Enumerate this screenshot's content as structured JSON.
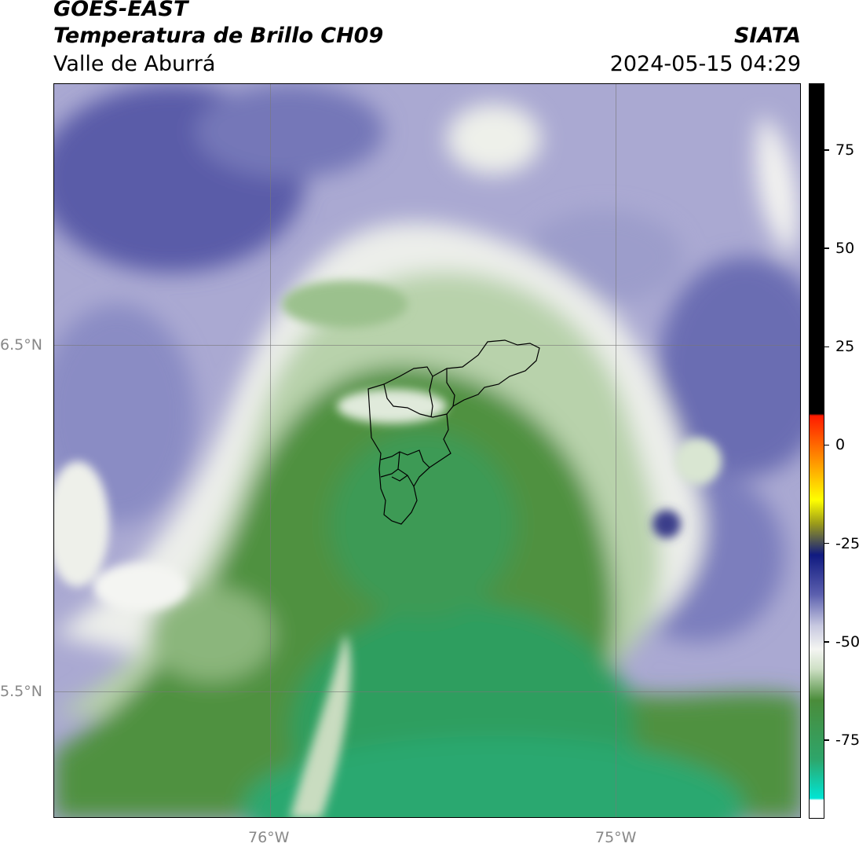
{
  "header": {
    "satellite": "GOES-EAST",
    "product": "Temperatura de Brillo CH09",
    "region": "Valle de Aburrá",
    "org": "SIATA",
    "datetime": "2024-05-15 04:29"
  },
  "map": {
    "lat_labels": [
      "6.5°N",
      "5.5°N"
    ],
    "lon_labels": [
      "76°W",
      "75°W"
    ],
    "colors": {
      "cold_purple": "#4b4f9e",
      "white_band": "#f2f3f0",
      "light_green": "#a9c89a",
      "green": "#4a8c3a",
      "teal_green": "#2ea56a"
    }
  },
  "colorbar": {
    "ticks": [
      "75",
      "50",
      "25",
      "0",
      "-25",
      "-50",
      "-75"
    ],
    "tick_values": [
      75,
      50,
      25,
      0,
      -25,
      -50,
      -75
    ],
    "range": [
      -95,
      92
    ],
    "colors": [
      "#00e5d4",
      "#2ea56a",
      "#4a8c3a",
      "#f4f5f2",
      "#5b5fae",
      "#101a80",
      "#9b9b1a",
      "#ffff00",
      "#ff8800",
      "#ff1a00",
      "#000000"
    ]
  }
}
